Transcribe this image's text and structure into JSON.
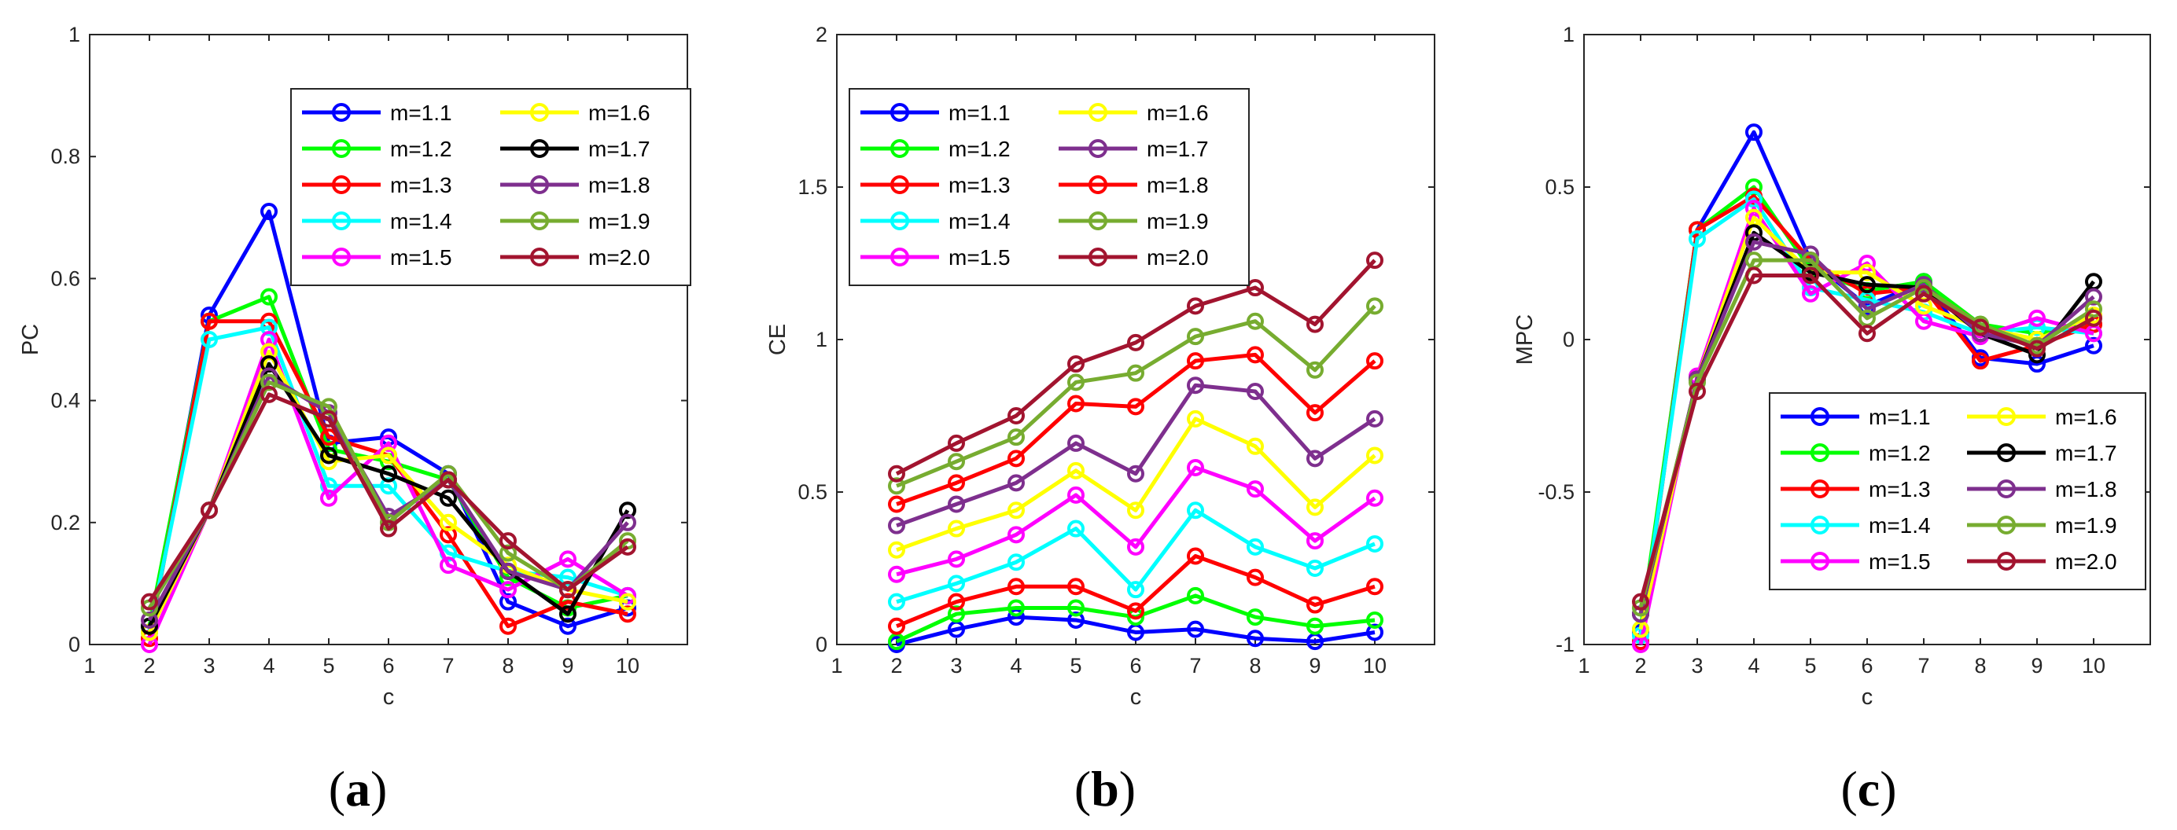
{
  "chart_data": [
    {
      "type": "line",
      "panel_label": "a",
      "xlabel": "c",
      "ylabel": "PC",
      "xlim": [
        1,
        11
      ],
      "ylim": [
        0,
        1
      ],
      "xticks": [
        1,
        2,
        3,
        4,
        5,
        6,
        7,
        8,
        9,
        10
      ],
      "yticks": [
        0,
        0.2,
        0.4,
        0.6,
        0.8,
        1
      ],
      "ytick_labels": [
        "0",
        "0.2",
        "0.4",
        "0.6",
        "0.8",
        "1"
      ],
      "legend": "top-right",
      "x": [
        2,
        3,
        4,
        5,
        6,
        7,
        8,
        9,
        10
      ],
      "series": [
        {
          "name": "m=1.1",
          "color": "#0000ff",
          "values": [
            0.02,
            0.54,
            0.71,
            0.33,
            0.34,
            0.28,
            0.07,
            0.03,
            0.06
          ]
        },
        {
          "name": "m=1.2",
          "color": "#00ff00",
          "values": [
            0.03,
            0.53,
            0.57,
            0.32,
            0.3,
            0.27,
            0.11,
            0.06,
            0.08
          ]
        },
        {
          "name": "m=1.3",
          "color": "#ff0000",
          "values": [
            0.01,
            0.53,
            0.53,
            0.34,
            0.31,
            0.18,
            0.03,
            0.07,
            0.05
          ]
        },
        {
          "name": "m=1.4",
          "color": "#00ffff",
          "values": [
            0.02,
            0.5,
            0.52,
            0.26,
            0.26,
            0.15,
            0.12,
            0.11,
            0.08
          ]
        },
        {
          "name": "m=1.5",
          "color": "#ff00ff",
          "values": [
            0.0,
            0.22,
            0.5,
            0.24,
            0.33,
            0.13,
            0.09,
            0.14,
            0.08
          ]
        },
        {
          "name": "m=1.6",
          "color": "#ffff00",
          "values": [
            0.02,
            0.22,
            0.48,
            0.3,
            0.31,
            0.2,
            0.13,
            0.09,
            0.07
          ]
        },
        {
          "name": "m=1.7",
          "color": "#000000",
          "values": [
            0.03,
            0.22,
            0.46,
            0.31,
            0.28,
            0.24,
            0.12,
            0.05,
            0.22
          ]
        },
        {
          "name": "m=1.8",
          "color": "#7e2f8e",
          "values": [
            0.04,
            0.22,
            0.44,
            0.38,
            0.21,
            0.27,
            0.12,
            0.09,
            0.2
          ]
        },
        {
          "name": "m=1.9",
          "color": "#77ac30",
          "values": [
            0.06,
            0.22,
            0.43,
            0.39,
            0.2,
            0.28,
            0.15,
            0.09,
            0.17
          ]
        },
        {
          "name": "m=2.0",
          "color": "#a2142f",
          "values": [
            0.07,
            0.22,
            0.41,
            0.37,
            0.19,
            0.27,
            0.17,
            0.09,
            0.16
          ]
        }
      ]
    },
    {
      "type": "line",
      "panel_label": "b",
      "xlabel": "c",
      "ylabel": "CE",
      "xlim": [
        1,
        11
      ],
      "ylim": [
        0,
        2
      ],
      "xticks": [
        1,
        2,
        3,
        4,
        5,
        6,
        7,
        8,
        9,
        10
      ],
      "yticks": [
        0,
        0.5,
        1,
        1.5,
        2
      ],
      "ytick_labels": [
        "0",
        "0.5",
        "1",
        "1.5",
        "2"
      ],
      "legend": "top-left",
      "x": [
        2,
        3,
        4,
        5,
        6,
        7,
        8,
        9,
        10
      ],
      "series": [
        {
          "name": "m=1.1",
          "color": "#0000ff",
          "values": [
            0.0,
            0.05,
            0.09,
            0.08,
            0.04,
            0.05,
            0.02,
            0.01,
            0.04
          ]
        },
        {
          "name": "m=1.2",
          "color": "#00ff00",
          "values": [
            0.01,
            0.1,
            0.12,
            0.12,
            0.09,
            0.16,
            0.09,
            0.06,
            0.08
          ]
        },
        {
          "name": "m=1.3",
          "color": "#ff0000",
          "values": [
            0.06,
            0.14,
            0.19,
            0.19,
            0.11,
            0.29,
            0.22,
            0.13,
            0.19
          ]
        },
        {
          "name": "m=1.4",
          "color": "#00ffff",
          "values": [
            0.14,
            0.2,
            0.27,
            0.38,
            0.18,
            0.44,
            0.32,
            0.25,
            0.33
          ]
        },
        {
          "name": "m=1.5",
          "color": "#ff00ff",
          "values": [
            0.23,
            0.28,
            0.36,
            0.49,
            0.32,
            0.58,
            0.51,
            0.34,
            0.48
          ]
        },
        {
          "name": "m=1.6",
          "color": "#ffff00",
          "values": [
            0.31,
            0.38,
            0.44,
            0.57,
            0.44,
            0.74,
            0.65,
            0.45,
            0.62
          ]
        },
        {
          "name": "m=1.7",
          "color": "#7e2f8e",
          "values": [
            0.39,
            0.46,
            0.53,
            0.66,
            0.56,
            0.85,
            0.83,
            0.61,
            0.74
          ]
        },
        {
          "name": "m=1.8",
          "color": "#ff0000",
          "values": [
            0.46,
            0.53,
            0.61,
            0.79,
            0.78,
            0.93,
            0.95,
            0.76,
            0.93
          ]
        },
        {
          "name": "m=1.9",
          "color": "#77ac30",
          "values": [
            0.52,
            0.6,
            0.68,
            0.86,
            0.89,
            1.01,
            1.06,
            0.9,
            1.11
          ]
        },
        {
          "name": "m=2.0",
          "color": "#a2142f",
          "values": [
            0.56,
            0.66,
            0.75,
            0.92,
            0.99,
            1.11,
            1.17,
            1.05,
            1.26
          ]
        }
      ]
    },
    {
      "type": "line",
      "panel_label": "c",
      "xlabel": "c",
      "ylabel": "MPC",
      "xlim": [
        1,
        11
      ],
      "ylim": [
        -1,
        1
      ],
      "xticks": [
        1,
        2,
        3,
        4,
        5,
        6,
        7,
        8,
        9,
        10
      ],
      "yticks": [
        -1,
        -0.5,
        0,
        0.5,
        1
      ],
      "ytick_labels": [
        "-1",
        "-0.5",
        "0",
        "0.5",
        "1"
      ],
      "legend": "bottom-right",
      "x": [
        2,
        3,
        4,
        5,
        6,
        7,
        8,
        9,
        10
      ],
      "series": [
        {
          "name": "m=1.1",
          "color": "#0000ff",
          "values": [
            -0.96,
            0.36,
            0.68,
            0.26,
            0.11,
            0.19,
            -0.06,
            -0.08,
            -0.02
          ]
        },
        {
          "name": "m=1.2",
          "color": "#00ff00",
          "values": [
            -0.95,
            0.36,
            0.5,
            0.23,
            0.16,
            0.19,
            0.05,
            0.02,
            0.05
          ]
        },
        {
          "name": "m=1.3",
          "color": "#ff0000",
          "values": [
            -0.99,
            0.36,
            0.47,
            0.26,
            0.15,
            0.17,
            -0.07,
            -0.02,
            0.05
          ]
        },
        {
          "name": "m=1.4",
          "color": "#00ffff",
          "values": [
            -0.97,
            0.33,
            0.46,
            0.17,
            0.13,
            0.09,
            0.02,
            0.04,
            0.02
          ]
        },
        {
          "name": "m=1.5",
          "color": "#ff00ff",
          "values": [
            -1.0,
            -0.12,
            0.43,
            0.15,
            0.25,
            0.06,
            0.01,
            0.07,
            0.02
          ]
        },
        {
          "name": "m=1.6",
          "color": "#ffff00",
          "values": [
            -0.95,
            -0.13,
            0.4,
            0.22,
            0.22,
            0.11,
            0.04,
            0.0,
            0.08
          ]
        },
        {
          "name": "m=1.7",
          "color": "#000000",
          "values": [
            -0.9,
            -0.13,
            0.35,
            0.22,
            0.18,
            0.17,
            0.02,
            -0.05,
            0.19
          ]
        },
        {
          "name": "m=1.8",
          "color": "#7e2f8e",
          "values": [
            -0.9,
            -0.13,
            0.32,
            0.28,
            0.1,
            0.18,
            0.02,
            -0.02,
            0.14
          ]
        },
        {
          "name": "m=1.9",
          "color": "#77ac30",
          "values": [
            -0.88,
            -0.14,
            0.26,
            0.26,
            0.07,
            0.17,
            0.05,
            -0.02,
            0.1
          ]
        },
        {
          "name": "m=2.0",
          "color": "#a2142f",
          "values": [
            -0.86,
            -0.17,
            0.21,
            0.21,
            0.02,
            0.15,
            0.04,
            -0.03,
            0.07
          ]
        }
      ]
    }
  ]
}
